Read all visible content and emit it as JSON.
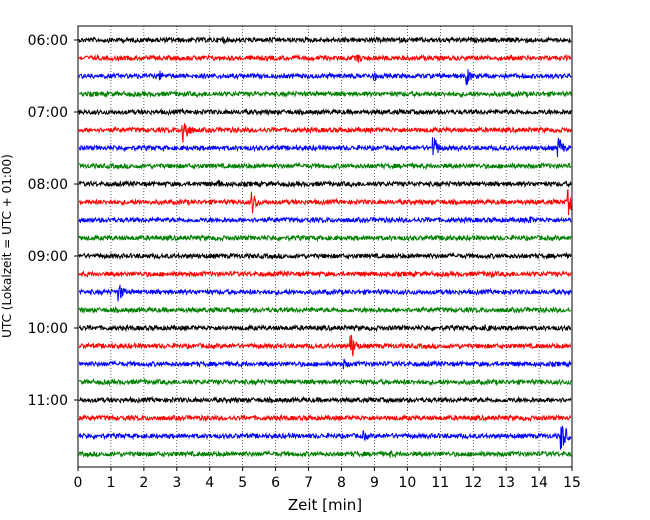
{
  "chart_data": {
    "type": "line",
    "subtype": "seismic-helicorder",
    "xlabel": "Zeit  [min]",
    "ylabel": "UTC (Lokalzeit = UTC + 01:00)",
    "xlim": [
      0,
      15
    ],
    "x_ticks": [
      "0",
      "1",
      "2",
      "3",
      "4",
      "5",
      "6",
      "7",
      "8",
      "9",
      "10",
      "11",
      "12",
      "13",
      "14",
      "15"
    ],
    "y_tick_labels": [
      "06:00",
      "07:00",
      "08:00",
      "09:00",
      "10:00",
      "11:00"
    ],
    "grid": "vertical dotted lines at each minute",
    "trace_colors": [
      "#000000",
      "#ff0000",
      "#0000ff",
      "#008000"
    ],
    "traces": [
      {
        "start": "06:00",
        "events": [
          {
            "minute": 4.4,
            "amp": 0.25
          }
        ]
      },
      {
        "start": "06:15",
        "events": [
          {
            "minute": 8.5,
            "amp": 0.3
          }
        ]
      },
      {
        "start": "06:30",
        "events": [
          {
            "minute": 2.5,
            "amp": 0.3
          },
          {
            "minute": 9.0,
            "amp": 0.3
          },
          {
            "minute": 11.8,
            "amp": 0.55
          }
        ]
      },
      {
        "start": "06:45",
        "events": []
      },
      {
        "start": "07:00",
        "events": []
      },
      {
        "start": "07:15",
        "events": [
          {
            "minute": 3.2,
            "amp": 0.95
          }
        ]
      },
      {
        "start": "07:30",
        "events": [
          {
            "minute": 10.8,
            "amp": 0.7
          },
          {
            "minute": 14.6,
            "amp": 0.65
          }
        ]
      },
      {
        "start": "07:45",
        "events": []
      },
      {
        "start": "08:00",
        "events": [
          {
            "minute": 4.3,
            "amp": 0.25
          }
        ]
      },
      {
        "start": "08:15",
        "events": [
          {
            "minute": 5.3,
            "amp": 0.65
          },
          {
            "minute": 14.9,
            "amp": 0.75
          }
        ]
      },
      {
        "start": "08:30",
        "events": [
          {
            "minute": 13.7,
            "amp": 0.3
          }
        ]
      },
      {
        "start": "08:45",
        "events": [
          {
            "minute": 11.2,
            "amp": 0.25
          }
        ]
      },
      {
        "start": "09:00",
        "events": []
      },
      {
        "start": "09:15",
        "events": [
          {
            "minute": 12.5,
            "amp": 0.3
          }
        ]
      },
      {
        "start": "09:30",
        "events": [
          {
            "minute": 1.25,
            "amp": 0.55
          }
        ]
      },
      {
        "start": "09:45",
        "events": []
      },
      {
        "start": "10:00",
        "events": [
          {
            "minute": 12.4,
            "amp": 0.3
          }
        ]
      },
      {
        "start": "10:15",
        "events": [
          {
            "minute": 8.3,
            "amp": 0.75
          }
        ]
      },
      {
        "start": "10:30",
        "events": [
          {
            "minute": 8.1,
            "amp": 0.3
          }
        ]
      },
      {
        "start": "10:45",
        "events": []
      },
      {
        "start": "11:00",
        "events": []
      },
      {
        "start": "11:15",
        "events": []
      },
      {
        "start": "11:30",
        "events": [
          {
            "minute": 8.7,
            "amp": 0.3
          },
          {
            "minute": 14.7,
            "amp": 0.85
          }
        ]
      },
      {
        "start": "11:45",
        "events": [
          {
            "minute": 9.5,
            "amp": 0.25
          }
        ]
      }
    ]
  }
}
